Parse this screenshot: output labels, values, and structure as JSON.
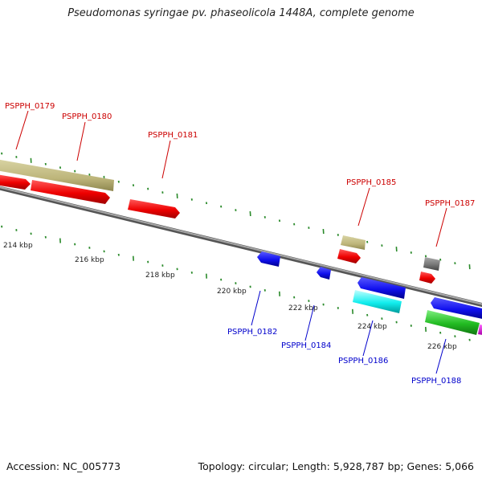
{
  "title": "Pseudomonas syringae pv. phaseolicola 1448A, complete genome",
  "footer": {
    "accession": "Accession: NC_005773",
    "topology": "Topology: circular; Length: 5,928,787 bp; Genes: 5,066"
  },
  "scale_labels": [
    "214 kbp",
    "216 kbp",
    "218 kbp",
    "220 kbp",
    "222 kbp",
    "224 kbp",
    "226 kbp"
  ],
  "colors": {
    "backbone": "#888888",
    "tick": "#2a8a2a",
    "label_top": "#cc0000",
    "label_bottom": "#0000bb"
  },
  "gene_labels": [
    {
      "name": "PSPPH_0179",
      "color": "#cc0000"
    },
    {
      "name": "PSPPH_0180",
      "color": "#cc0000"
    },
    {
      "name": "PSPPH_0181",
      "color": "#cc0000"
    },
    {
      "name": "PSPPH_0185",
      "color": "#cc0000"
    },
    {
      "name": "PSPPH_0187",
      "color": "#cc0000"
    },
    {
      "name": "PSPPH_0182",
      "color": "#0000cc"
    },
    {
      "name": "PSPPH_0184",
      "color": "#0000cc"
    },
    {
      "name": "PSPPH_0186",
      "color": "#0000cc"
    },
    {
      "name": "PSPPH_0188",
      "color": "#0000cc"
    }
  ]
}
